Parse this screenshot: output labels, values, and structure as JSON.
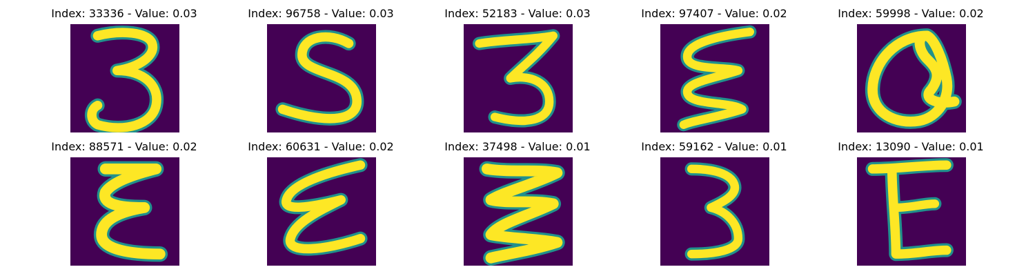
{
  "colormap": {
    "background": "#440154",
    "edge_dark": "#21918c",
    "edge_light": "#5ec962",
    "foreground": "#fde725"
  },
  "panels": [
    {
      "title": "Index: 33336 - Value: 0.03",
      "glyph": "3"
    },
    {
      "title": "Index: 96758 - Value: 0.03",
      "glyph": "S"
    },
    {
      "title": "Index: 52183 - Value: 0.03",
      "glyph": "3"
    },
    {
      "title": "Index: 97407 - Value: 0.02",
      "glyph": "ε"
    },
    {
      "title": "Index: 59998 - Value: 0.02",
      "glyph": "Q"
    },
    {
      "title": "Index: 88571 - Value: 0.02",
      "glyph": "ε"
    },
    {
      "title": "Index: 60631 - Value: 0.02",
      "glyph": "ε"
    },
    {
      "title": "Index: 37498 - Value: 0.01",
      "glyph": "ε"
    },
    {
      "title": "Index: 59162 - Value: 0.01",
      "glyph": "3"
    },
    {
      "title": "Index: 13090 - Value: 0.01",
      "glyph": "E"
    }
  ]
}
